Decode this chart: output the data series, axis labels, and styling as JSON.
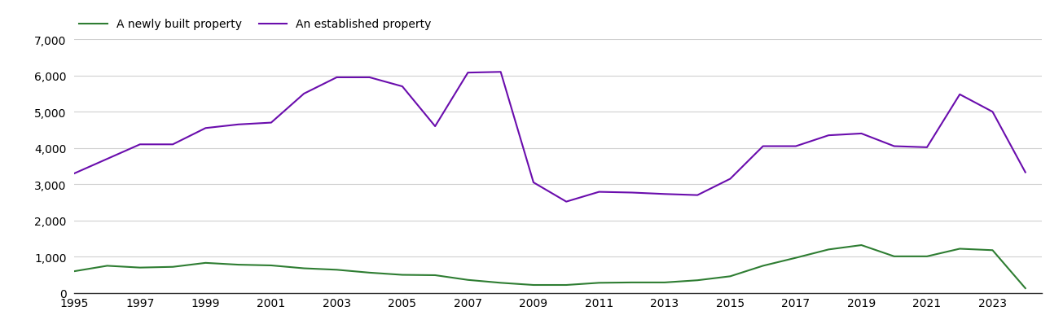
{
  "years": [
    1995,
    1996,
    1997,
    1998,
    1999,
    2000,
    2001,
    2002,
    2003,
    2004,
    2005,
    2006,
    2007,
    2008,
    2009,
    2010,
    2011,
    2012,
    2013,
    2014,
    2015,
    2016,
    2017,
    2018,
    2019,
    2020,
    2021,
    2022,
    2023,
    2024
  ],
  "new_build": [
    600,
    750,
    700,
    720,
    830,
    780,
    760,
    680,
    640,
    560,
    500,
    490,
    360,
    280,
    220,
    220,
    280,
    290,
    290,
    350,
    460,
    750,
    970,
    1200,
    1320,
    1010,
    1010,
    1220,
    1180,
    130
  ],
  "established": [
    3300,
    3700,
    4100,
    4100,
    4550,
    4650,
    4700,
    5500,
    5950,
    5950,
    5700,
    4600,
    6080,
    6100,
    3050,
    2520,
    2790,
    2770,
    2730,
    2700,
    3150,
    4050,
    4050,
    4350,
    4400,
    4050,
    4020,
    5480,
    5000,
    3330
  ],
  "new_build_color": "#2e7d32",
  "established_color": "#6a0dad",
  "new_build_label": "A newly built property",
  "established_label": "An established property",
  "ylim": [
    0,
    7000
  ],
  "yticks": [
    0,
    1000,
    2000,
    3000,
    4000,
    5000,
    6000,
    7000
  ],
  "xtick_years": [
    1995,
    1997,
    1999,
    2001,
    2003,
    2005,
    2007,
    2009,
    2011,
    2013,
    2015,
    2017,
    2019,
    2021,
    2023
  ],
  "background_color": "#ffffff",
  "grid_color": "#d0d0d0",
  "linewidth": 1.5
}
